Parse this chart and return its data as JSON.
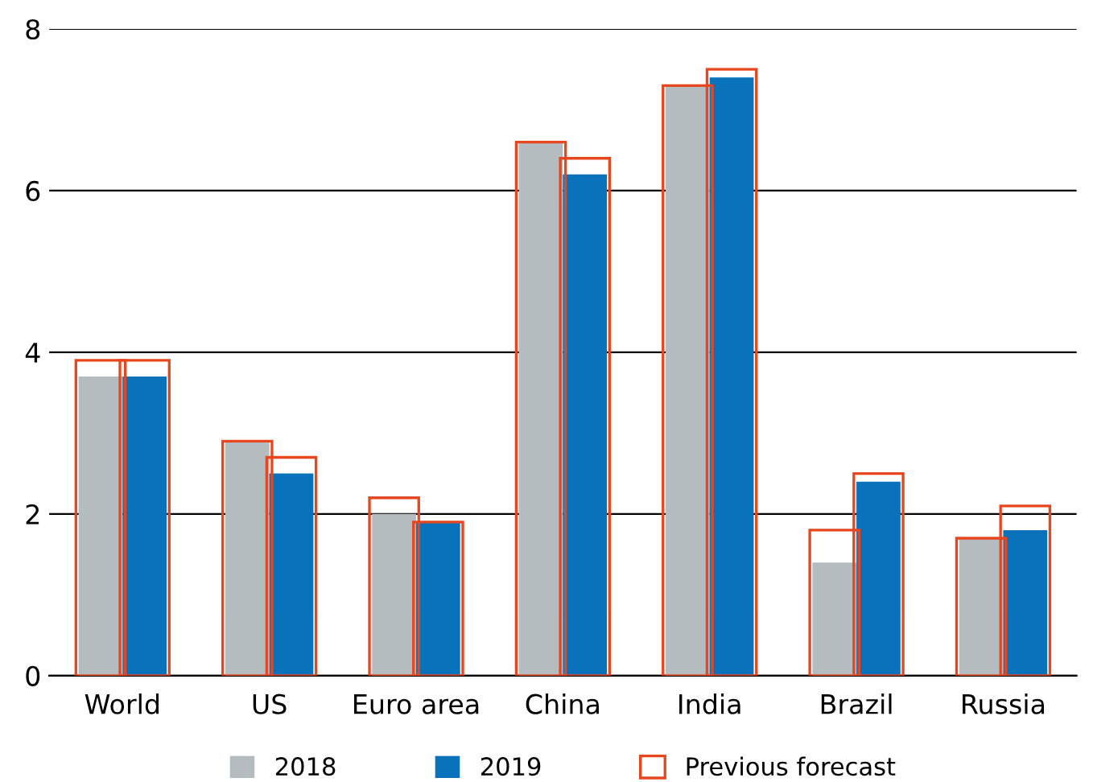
{
  "chart_data": {
    "type": "bar",
    "categories": [
      "World",
      "US",
      "Euro area",
      "China",
      "India",
      "Brazil",
      "Russia"
    ],
    "series": [
      {
        "name": "2018",
        "color": "#b4bcc0",
        "values": [
          3.7,
          2.9,
          2.0,
          6.6,
          7.3,
          1.4,
          1.7
        ]
      },
      {
        "name": "2019",
        "color": "#0a72ba",
        "values": [
          3.7,
          2.5,
          1.9,
          6.2,
          7.4,
          2.4,
          1.8
        ]
      },
      {
        "name": "Previous forecast",
        "color": "#e8461e",
        "values": [
          3.9,
          2.9,
          2.2,
          6.6,
          7.3,
          1.8,
          1.7
        ]
      },
      {
        "color": "#e8461e",
        "values": [
          3.9,
          2.7,
          1.9,
          6.4,
          7.5,
          2.5,
          2.1
        ]
      }
    ],
    "ylim": [
      0,
      8
    ],
    "yticks": [
      0,
      2,
      4,
      6,
      8
    ],
    "grid": "y",
    "legend": "bottom"
  }
}
